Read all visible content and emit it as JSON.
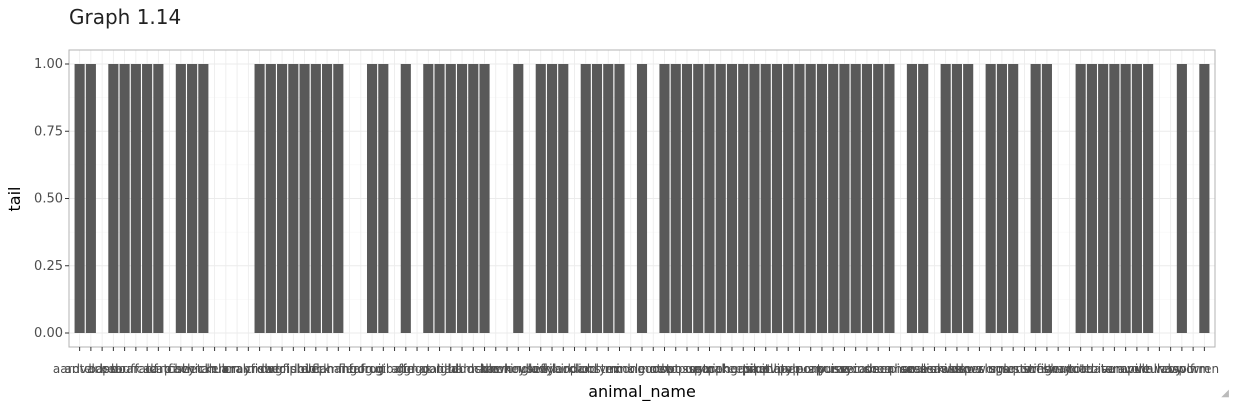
{
  "title": "Graph 1.14",
  "chart_data": {
    "type": "bar",
    "xlabel": "animal_name",
    "ylabel": "tail",
    "ylim": [
      0,
      1.05
    ],
    "yticks": [
      "0.00",
      "0.25",
      "0.50",
      "0.75",
      "1.00"
    ],
    "grid": true,
    "bar_color": "#595959",
    "categories": [
      "aardvark",
      "antelope",
      "bass",
      "bear",
      "boar",
      "buffalo",
      "calf",
      "carp",
      "catfish",
      "cavy",
      "cheetah",
      "chicken",
      "chub",
      "clam",
      "crab",
      "crayfish",
      "crow",
      "deer",
      "dogfish",
      "dolphin",
      "dove",
      "duck",
      "elephant",
      "flamingo",
      "flea",
      "frog",
      "frog",
      "fruitbat",
      "giraffe",
      "girl",
      "gnat",
      "goat",
      "gorilla",
      "gull",
      "haddock",
      "hamster",
      "hare",
      "hawk",
      "herring",
      "honeybee",
      "housefly",
      "kiwi",
      "ladybird",
      "lark",
      "leopard",
      "lion",
      "lobster",
      "lynx",
      "mink",
      "mole",
      "mongoose",
      "moth",
      "newt",
      "octopus",
      "opossum",
      "oryx",
      "ostrich",
      "parakeet",
      "penguin",
      "pheasant",
      "pike",
      "piranha",
      "pitviper",
      "platypus",
      "polecat",
      "pony",
      "porpoise",
      "puma",
      "pussycat",
      "raccoon",
      "reindeer",
      "rhea",
      "scorpion",
      "seahorse",
      "seal",
      "sealion",
      "seasnake",
      "seawasp",
      "skimmer",
      "skua",
      "slowworm",
      "slug",
      "sole",
      "sparrow",
      "squirrel",
      "starfish",
      "stingray",
      "swan",
      "termite",
      "toad",
      "tortoise",
      "tuatara",
      "tuna",
      "vampire",
      "vole",
      "vulture",
      "wallaby",
      "wasp",
      "wolf",
      "worm",
      "wren"
    ],
    "values": [
      1,
      1,
      0,
      1,
      1,
      1,
      1,
      1,
      0,
      1,
      1,
      1,
      0,
      0,
      0,
      0,
      1,
      1,
      1,
      1,
      1,
      1,
      1,
      1,
      0,
      0,
      1,
      1,
      0,
      1,
      0,
      1,
      1,
      1,
      1,
      1,
      1,
      0,
      0,
      1,
      0,
      1,
      1,
      1,
      0,
      1,
      1,
      1,
      1,
      0,
      1,
      0,
      1,
      1,
      1,
      1,
      1,
      1,
      1,
      1,
      1,
      1,
      1,
      1,
      1,
      1,
      1,
      1,
      1,
      1,
      1,
      1,
      1,
      0,
      1,
      1,
      0,
      1,
      1,
      1,
      0,
      1,
      1,
      1,
      0,
      1,
      1,
      0,
      0,
      1,
      1,
      1,
      1,
      1,
      1,
      1,
      0,
      0,
      1,
      0,
      1
    ]
  }
}
